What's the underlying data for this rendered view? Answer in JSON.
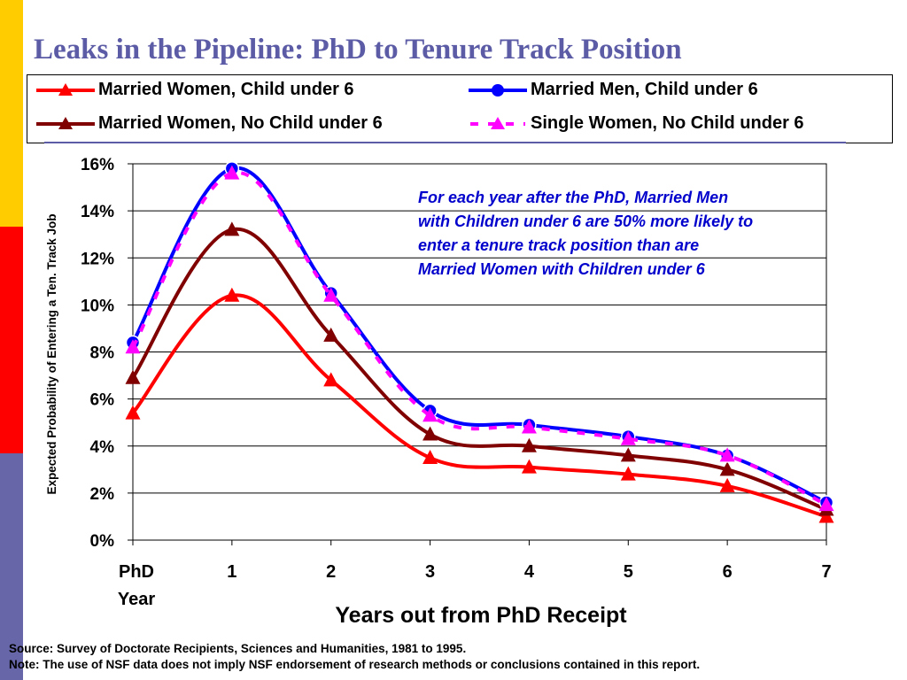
{
  "slide": {
    "title": "Leaks in the Pipeline: PhD to Tenure Track Position",
    "source": "Source: Survey of Doctorate Recipients, Sciences and Humanities, 1981 to 1995.",
    "note": "Note: The use of NSF data does not imply NSF endorsement of research methods or conclusions contained in this report.",
    "sidebar_colors": [
      "#ffcc00",
      "#ff0000",
      "#6666a8"
    ]
  },
  "chart_data": {
    "type": "line",
    "xlabel": "Years out from PhD Receipt",
    "ylabel": "Expected Probability of Entering a Ten. Track Job",
    "categories": [
      "PhD\nYear",
      "1",
      "2",
      "3",
      "4",
      "5",
      "6",
      "7"
    ],
    "y_ticks": [
      "0%",
      "2%",
      "4%",
      "6%",
      "8%",
      "10%",
      "12%",
      "14%",
      "16%"
    ],
    "ylim": [
      0,
      16
    ],
    "grid": true,
    "legend_position": "top",
    "annotation": "For each year after the PhD, Married Men with Children under 6 are 50% more likely to enter a tenure track position than are Married Women with Children under 6",
    "series": [
      {
        "name": "Married Women, Child under 6",
        "color": "#ff0000",
        "marker": "triangle",
        "dashed": false,
        "values": [
          5.4,
          10.4,
          6.8,
          3.5,
          3.1,
          2.8,
          2.3,
          1.0
        ]
      },
      {
        "name": "Married Men, Child under 6",
        "color": "#0000ff",
        "marker": "circle",
        "dashed": false,
        "values": [
          8.4,
          15.8,
          10.5,
          5.5,
          4.9,
          4.4,
          3.6,
          1.6
        ]
      },
      {
        "name": "Married Women, No Child under 6",
        "color": "#800000",
        "marker": "triangle",
        "dashed": false,
        "values": [
          6.9,
          13.2,
          8.7,
          4.5,
          4.0,
          3.6,
          3.0,
          1.3
        ]
      },
      {
        "name": "Single Women, No Child under 6",
        "color": "#ff00ff",
        "marker": "triangle",
        "dashed": true,
        "values": [
          8.2,
          15.6,
          10.4,
          5.3,
          4.8,
          4.3,
          3.6,
          1.5
        ]
      }
    ]
  }
}
